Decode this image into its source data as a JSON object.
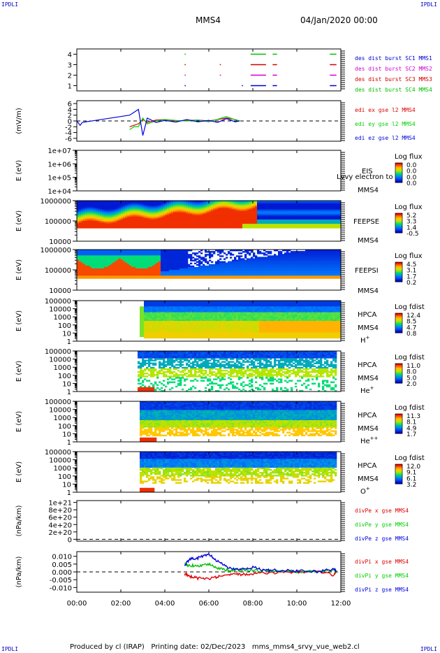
{
  "header": {
    "corner_label": "IPDLI",
    "title": "MMS4",
    "date": "04/Jan/2020 00:00"
  },
  "footer": {
    "produced_by": "Produced by cl (IRAP)",
    "printing_date": "Printing date: 02/Dec/2023",
    "script": "mms_mms4_srvy_vue_web2.cl"
  },
  "colors": {
    "mms1": "#0000d0",
    "mms2": "#d000d0",
    "mms3": "#d00000",
    "mms4": "#00c000",
    "x_comp": "#e00000",
    "y_comp": "#00d000",
    "z_comp": "#0000e0"
  },
  "time_axis": {
    "ticks": [
      "00:00",
      "02:00",
      "04:00",
      "06:00",
      "08:00",
      "10:00",
      "12:00"
    ],
    "range_hours": [
      0,
      12
    ]
  },
  "chart_data": [
    {
      "id": "burst",
      "type": "line",
      "yticks": [
        "1",
        "2",
        "3",
        "4"
      ],
      "ylim": [
        0.5,
        4.5
      ],
      "legend": [
        "des dist burst SC1 MMS1",
        "des dist burst SC2 MMS2",
        "des dist burst SC3 MMS3",
        "des dist burst SC4 MMS4"
      ],
      "series": [
        {
          "color": "#0000d0",
          "y": 1,
          "intervals": [
            [
              4.9,
              4.95
            ],
            [
              7.5,
              7.55
            ],
            [
              7.9,
              8.6
            ],
            [
              8.9,
              9.1
            ],
            [
              11.5,
              11.8
            ]
          ]
        },
        {
          "color": "#d000d0",
          "y": 2,
          "intervals": [
            [
              4.9,
              4.95
            ],
            [
              6.5,
              6.55
            ],
            [
              7.9,
              8.6
            ],
            [
              8.9,
              9.1
            ],
            [
              11.5,
              11.8
            ]
          ]
        },
        {
          "color": "#d00000",
          "y": 3,
          "intervals": [
            [
              4.9,
              4.95
            ],
            [
              6.5,
              6.55
            ],
            [
              7.9,
              8.6
            ],
            [
              8.9,
              9.1
            ],
            [
              11.5,
              11.8
            ]
          ]
        },
        {
          "color": "#00c000",
          "y": 4,
          "intervals": [
            [
              4.9,
              4.95
            ],
            [
              7.9,
              8.6
            ],
            [
              8.9,
              9.1
            ],
            [
              11.5,
              11.8
            ]
          ]
        }
      ]
    },
    {
      "id": "edi",
      "type": "line",
      "ylabel": "(mV/m)",
      "yticks": [
        "-6",
        "-4",
        "-2",
        "0",
        "2",
        "4",
        "6"
      ],
      "ylim": [
        -7,
        7
      ],
      "legend": [
        "edi ex gse l2 MMS4",
        "edi ey gse l2 MMS4",
        "edi ez gse l2 MMS4"
      ],
      "series": [
        {
          "color": "#e00000",
          "points": [
            [
              2.4,
              -2
            ],
            [
              2.6,
              -1.5
            ],
            [
              2.8,
              -1
            ],
            [
              3.0,
              0.5
            ],
            [
              3.2,
              -0.5
            ],
            [
              3.6,
              0.3
            ],
            [
              4.0,
              0.5
            ],
            [
              4.5,
              0
            ],
            [
              5.0,
              0.2
            ],
            [
              5.5,
              0.3
            ],
            [
              6.0,
              0
            ],
            [
              6.4,
              0.5
            ],
            [
              6.8,
              1
            ],
            [
              7.2,
              0.5
            ],
            [
              7.4,
              0
            ]
          ]
        },
        {
          "color": "#00d000",
          "points": [
            [
              2.4,
              -3
            ],
            [
              2.6,
              -2
            ],
            [
              2.8,
              -2
            ],
            [
              3.0,
              1
            ],
            [
              3.2,
              -1
            ],
            [
              3.6,
              0
            ],
            [
              4.0,
              0.5
            ],
            [
              4.5,
              0.2
            ],
            [
              5.0,
              0
            ],
            [
              5.5,
              0.3
            ],
            [
              6.0,
              -0.3
            ],
            [
              6.4,
              0.6
            ],
            [
              6.8,
              1.5
            ],
            [
              7.2,
              0.4
            ],
            [
              7.4,
              0
            ]
          ]
        },
        {
          "color": "#0000e0",
          "points": [
            [
              0.0,
              0
            ],
            [
              0.15,
              -1.5
            ],
            [
              0.25,
              -0.5
            ],
            [
              2.4,
              2
            ],
            [
              2.6,
              3
            ],
            [
              2.8,
              4
            ],
            [
              3.0,
              -5
            ],
            [
              3.2,
              1
            ],
            [
              3.6,
              -0.5
            ],
            [
              4.0,
              0.2
            ],
            [
              4.5,
              -0.4
            ],
            [
              5.0,
              0.5
            ],
            [
              5.5,
              -0.3
            ],
            [
              6.0,
              0.2
            ],
            [
              6.4,
              -0.5
            ],
            [
              6.8,
              0.8
            ],
            [
              7.2,
              -0.3
            ],
            [
              7.4,
              0
            ]
          ]
        }
      ]
    },
    {
      "id": "eis",
      "type": "heatmap",
      "ylabel": "E (eV)",
      "yticks": [
        "1e+04",
        "1e+05",
        "1e+06",
        "1e+07"
      ],
      "ylog": [
        4,
        7
      ],
      "instrument": [
        "EIS",
        "MMS4"
      ],
      "overlay": "Lvvy electron to",
      "cbar_title": "Log flux",
      "cbar_ticks": [
        "0.0",
        "0.0",
        "0.0",
        "0.0"
      ]
    },
    {
      "id": "feepse",
      "type": "heatmap",
      "ylabel": "E (eV)",
      "yticks": [
        "10000",
        "100000",
        "1000000"
      ],
      "ylog": [
        4,
        6
      ],
      "instrument": [
        "FEEPSE",
        "MMS4"
      ],
      "cbar_title": "Log flux",
      "cbar_ticks": [
        "5.2",
        "3.3",
        "1.4",
        "-0.5"
      ]
    },
    {
      "id": "feepsi",
      "type": "heatmap",
      "ylabel": "E (eV)",
      "yticks": [
        "10000",
        "100000",
        "1000000"
      ],
      "ylog": [
        4,
        6
      ],
      "instrument": [
        "FEEPSI",
        "MMS4"
      ],
      "cbar_title": "Log flux",
      "cbar_ticks": [
        "4.5",
        "3.1",
        "1.7",
        "0.2"
      ]
    },
    {
      "id": "hpca_h",
      "type": "heatmap",
      "ylabel": "E (eV)",
      "yticks": [
        "1",
        "10",
        "100",
        "1000",
        "10000",
        "100000"
      ],
      "ylog": [
        0,
        5
      ],
      "instrument": [
        "HPCA",
        "MMS4"
      ],
      "species": "H",
      "charge": "+",
      "cbar_title": "Log fdist",
      "cbar_ticks": [
        "12.4",
        "8.5",
        "4.7",
        "0.8"
      ]
    },
    {
      "id": "hpca_he",
      "type": "heatmap",
      "ylabel": "E (eV)",
      "yticks": [
        "1",
        "10",
        "100",
        "1000",
        "10000",
        "100000"
      ],
      "ylog": [
        0,
        5
      ],
      "instrument": [
        "HPCA",
        "MMS4"
      ],
      "species": "He",
      "charge": "+",
      "cbar_title": "Log fdist",
      "cbar_ticks": [
        "11.0",
        "8.0",
        "5.0",
        "2.0"
      ]
    },
    {
      "id": "hpca_hepp",
      "type": "heatmap",
      "ylabel": "E (eV)",
      "yticks": [
        "1",
        "10",
        "100",
        "1000",
        "10000",
        "100000"
      ],
      "ylog": [
        0,
        5
      ],
      "instrument": [
        "HPCA",
        "MMS4"
      ],
      "species": "He",
      "charge": "++",
      "cbar_title": "Log fdist",
      "cbar_ticks": [
        "11.3",
        "8.1",
        "4.9",
        "1.7"
      ]
    },
    {
      "id": "hpca_o",
      "type": "heatmap",
      "ylabel": "E (eV)",
      "yticks": [
        "1",
        "10",
        "100",
        "1000",
        "10000",
        "100000"
      ],
      "ylog": [
        0,
        5
      ],
      "instrument": [
        "HPCA",
        "MMS4"
      ],
      "species": "O",
      "charge": "+",
      "cbar_title": "Log fdist",
      "cbar_ticks": [
        "12.0",
        "9.1",
        "6.1",
        "3.2"
      ]
    },
    {
      "id": "divpe",
      "type": "line",
      "ylabel": "(nPa/km)",
      "yticks": [
        "0",
        "2e+20",
        "4e+20",
        "6e+20",
        "8e+20",
        "1e+21"
      ],
      "ylim": [
        -5e+19,
        1.05e+21
      ],
      "legend": [
        "divPe x gse MMS4",
        "divPe y gse MMS4",
        "divPe z gse MMS4"
      ],
      "series": []
    },
    {
      "id": "divpi",
      "type": "line",
      "ylabel": "(nPa/km)",
      "yticks": [
        "-0.010",
        "-0.005",
        "0.000",
        "0.005",
        "0.010"
      ],
      "ylim": [
        -0.013,
        0.013
      ],
      "legend": [
        "divPi x gse MMS4",
        "divPi y gse MMS4",
        "divPi z gse MMS4"
      ],
      "series": [
        {
          "color": "#e00000",
          "points": [
            [
              4.9,
              -0.001
            ],
            [
              5.1,
              -0.003
            ],
            [
              5.5,
              -0.004
            ],
            [
              6.0,
              -0.0045
            ],
            [
              6.5,
              -0.003
            ],
            [
              7.0,
              -0.002
            ],
            [
              7.5,
              -0.0015
            ],
            [
              8.0,
              -0.001
            ],
            [
              9.0,
              -0.0005
            ],
            [
              10.0,
              0
            ],
            [
              11.0,
              0
            ],
            [
              11.7,
              -0.002
            ],
            [
              11.8,
              0
            ]
          ]
        },
        {
          "color": "#00c000",
          "points": [
            [
              4.9,
              0.005
            ],
            [
              5.1,
              0.004
            ],
            [
              5.5,
              0.004
            ],
            [
              6.0,
              0.005
            ],
            [
              6.5,
              0.002
            ],
            [
              7.0,
              0.001
            ],
            [
              7.5,
              0.001
            ],
            [
              8.0,
              0.001
            ],
            [
              9.0,
              0.0005
            ],
            [
              10.0,
              0.0003
            ],
            [
              11.0,
              0.0003
            ],
            [
              11.7,
              0.001
            ],
            [
              11.8,
              0
            ]
          ]
        },
        {
          "color": "#0000e0",
          "points": [
            [
              4.9,
              0.004
            ],
            [
              5.1,
              0.008
            ],
            [
              5.5,
              0.009
            ],
            [
              6.0,
              0.011
            ],
            [
              6.5,
              0.006
            ],
            [
              7.0,
              0.002
            ],
            [
              7.5,
              0.002
            ],
            [
              8.0,
              0.003
            ],
            [
              8.5,
              0.001
            ],
            [
              9.0,
              0.001
            ],
            [
              10.0,
              0.0005
            ],
            [
              11.0,
              0
            ],
            [
              11.7,
              0.002
            ],
            [
              11.8,
              0
            ]
          ]
        }
      ]
    }
  ]
}
